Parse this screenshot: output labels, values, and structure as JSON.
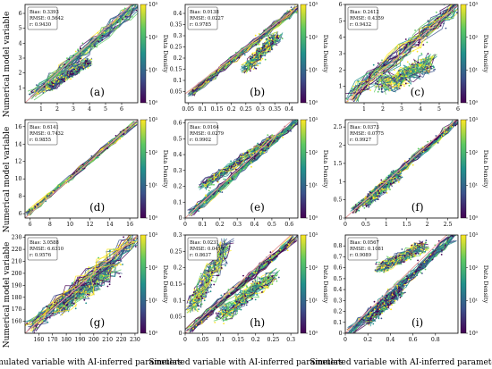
{
  "figure": {
    "ylabel_text": "Numerical model variable",
    "xlabel_text": "Simulated variable with AI-inferred parameters",
    "colorbar_label": "Data Density",
    "colorbar_ticks": [
      "10⁰",
      "10¹",
      "10²",
      "10³"
    ],
    "colormap": [
      "#440154",
      "#3b528b",
      "#21918c",
      "#5ec962",
      "#fde725"
    ],
    "one_to_one_line_color": "#e8a0a0"
  },
  "chart_data": [
    {
      "type": "scatter",
      "letter": "(a)",
      "stats": [
        "Bias: 0.3393",
        "RMSE: 0.5642",
        "r: 0.9430"
      ],
      "xlim": [
        0,
        7
      ],
      "ylim": [
        0,
        6.6
      ],
      "xticks": [
        1,
        2,
        3,
        4,
        5,
        6
      ],
      "yticks": [
        1,
        2,
        3,
        4,
        5,
        6
      ],
      "clouds": [
        {
          "x0": 0.5,
          "y0": 0.5,
          "x1": 6.9,
          "y1": 6.5,
          "width": 0.35
        },
        {
          "x0": 1.5,
          "y0": 1.0,
          "x1": 4.0,
          "y1": 2.8,
          "width": 0.25
        }
      ]
    },
    {
      "type": "scatter",
      "letter": "(b)",
      "stats": [
        "Bias: 0.0138",
        "RMSE: 0.0227",
        "r: 0.9785"
      ],
      "xlim": [
        0.04,
        0.43
      ],
      "ylim": [
        0.0,
        0.44
      ],
      "xticks": [
        0.05,
        0.1,
        0.15,
        0.2,
        0.25,
        0.3,
        0.35,
        0.4
      ],
      "yticks": [
        0.05,
        0.1,
        0.15,
        0.2,
        0.25,
        0.3,
        0.35,
        0.4
      ],
      "clouds": [
        {
          "x0": 0.06,
          "y0": 0.04,
          "x1": 0.43,
          "y1": 0.43,
          "width": 0.012
        },
        {
          "x0": 0.25,
          "y0": 0.15,
          "x1": 0.36,
          "y1": 0.3,
          "width": 0.02
        }
      ]
    },
    {
      "type": "scatter",
      "letter": "(c)",
      "stats": [
        "Bias: 0.2412",
        "RMSE: 0.4359",
        "r: 0.9432"
      ],
      "xlim": [
        0,
        6
      ],
      "ylim": [
        0,
        6
      ],
      "xticks": [
        1,
        2,
        3,
        4,
        5,
        6
      ],
      "yticks": [
        1,
        2,
        3,
        4,
        5,
        6
      ],
      "clouds": [
        {
          "x0": 0.3,
          "y0": 0.4,
          "x1": 6.0,
          "y1": 6.0,
          "width": 0.4
        },
        {
          "x0": 2.0,
          "y0": 1.0,
          "x1": 4.5,
          "y1": 2.5,
          "width": 0.5
        }
      ]
    },
    {
      "type": "scatter",
      "letter": "(d)",
      "stats": [
        "Bias: 0.6141",
        "RMSE: 0.7432",
        "r: 0.9855"
      ],
      "xlim": [
        5.5,
        16.8
      ],
      "ylim": [
        5.5,
        16.8
      ],
      "xticks": [
        6,
        8,
        10,
        12,
        14,
        16
      ],
      "yticks": [
        6,
        8,
        10,
        12,
        14,
        16
      ],
      "clouds": [
        {
          "x0": 5.8,
          "y0": 6.0,
          "x1": 16.5,
          "y1": 16.4,
          "width": 0.25
        }
      ]
    },
    {
      "type": "scatter",
      "letter": "(e)",
      "stats": [
        "Bias: 0.0164",
        "RMSE: 0.0279",
        "r: 0.9902"
      ],
      "xlim": [
        0,
        0.65
      ],
      "ylim": [
        0,
        0.62
      ],
      "xticks": [
        0.0,
        0.1,
        0.2,
        0.3,
        0.4,
        0.5,
        0.6
      ],
      "yticks": [
        0.0,
        0.1,
        0.2,
        0.3,
        0.4,
        0.5,
        0.6
      ],
      "clouds": [
        {
          "x0": 0.03,
          "y0": 0.03,
          "x1": 0.64,
          "y1": 0.61,
          "width": 0.02
        },
        {
          "x0": 0.1,
          "y0": 0.2,
          "x1": 0.5,
          "y1": 0.5,
          "width": 0.025
        }
      ]
    },
    {
      "type": "scatter",
      "letter": "(f)",
      "stats": [
        "Bias: 0.0373",
        "RMSE: 0.0775",
        "r: 0.9927"
      ],
      "xlim": [
        0,
        2.75
      ],
      "ylim": [
        0,
        2.7
      ],
      "xticks": [
        0.0,
        0.5,
        1.0,
        1.5,
        2.0,
        2.5
      ],
      "yticks": [
        0.0,
        0.5,
        1.0,
        1.5,
        2.0,
        2.5
      ],
      "clouds": [
        {
          "x0": 0.2,
          "y0": 0.2,
          "x1": 2.7,
          "y1": 2.65,
          "width": 0.08
        },
        {
          "x0": 0.5,
          "y0": 0.4,
          "x1": 1.3,
          "y1": 1.2,
          "width": 0.12
        }
      ]
    },
    {
      "type": "scatter",
      "letter": "(g)",
      "stats": [
        "Bias: 3.0588",
        "RMSE: 6.6310",
        "r: 0.9576"
      ],
      "xlim": [
        150,
        232
      ],
      "ylim": [
        150,
        232
      ],
      "xticks": [
        160,
        170,
        180,
        190,
        200,
        210,
        220,
        230
      ],
      "yticks": [
        160,
        170,
        180,
        190,
        200,
        210,
        220,
        230
      ],
      "clouds": [
        {
          "x0": 153,
          "y0": 155,
          "x1": 230,
          "y1": 230,
          "width": 5.5
        },
        {
          "x0": 175,
          "y0": 170,
          "x1": 215,
          "y1": 205,
          "width": 6
        }
      ]
    },
    {
      "type": "scatter",
      "letter": "(h)",
      "stats": [
        "Bias: 0.0231",
        "RMSE: 0.0410",
        "r: 0.8637"
      ],
      "xlim": [
        0,
        0.32
      ],
      "ylim": [
        0,
        0.3
      ],
      "xticks": [
        0.0,
        0.05,
        0.1,
        0.15,
        0.2,
        0.25,
        0.3
      ],
      "yticks": [
        0.0,
        0.05,
        0.1,
        0.15,
        0.2,
        0.25,
        0.3
      ],
      "clouds": [
        {
          "x0": 0.01,
          "y0": 0.01,
          "x1": 0.31,
          "y1": 0.29,
          "width": 0.01
        },
        {
          "x0": 0.02,
          "y0": 0.08,
          "x1": 0.12,
          "y1": 0.27,
          "width": 0.02
        },
        {
          "x0": 0.1,
          "y0": 0.05,
          "x1": 0.25,
          "y1": 0.18,
          "width": 0.02
        }
      ]
    },
    {
      "type": "scatter",
      "letter": "(i)",
      "stats": [
        "Bias: 0.0567",
        "RMSE: 0.1081",
        "r: 0.9089"
      ],
      "xlim": [
        0,
        1.0
      ],
      "ylim": [
        0,
        0.9
      ],
      "xticks": [
        0.0,
        0.2,
        0.4,
        0.6,
        0.8
      ],
      "yticks": [
        0.0,
        0.1,
        0.2,
        0.3,
        0.4,
        0.5,
        0.6,
        0.7,
        0.8
      ],
      "clouds": [
        {
          "x0": 0.05,
          "y0": 0.02,
          "x1": 0.95,
          "y1": 0.88,
          "width": 0.04
        },
        {
          "x0": 0.3,
          "y0": 0.6,
          "x1": 0.7,
          "y1": 0.8,
          "width": 0.05
        },
        {
          "x0": 0.2,
          "y0": 0.1,
          "x1": 0.5,
          "y1": 0.4,
          "width": 0.04
        }
      ]
    }
  ]
}
